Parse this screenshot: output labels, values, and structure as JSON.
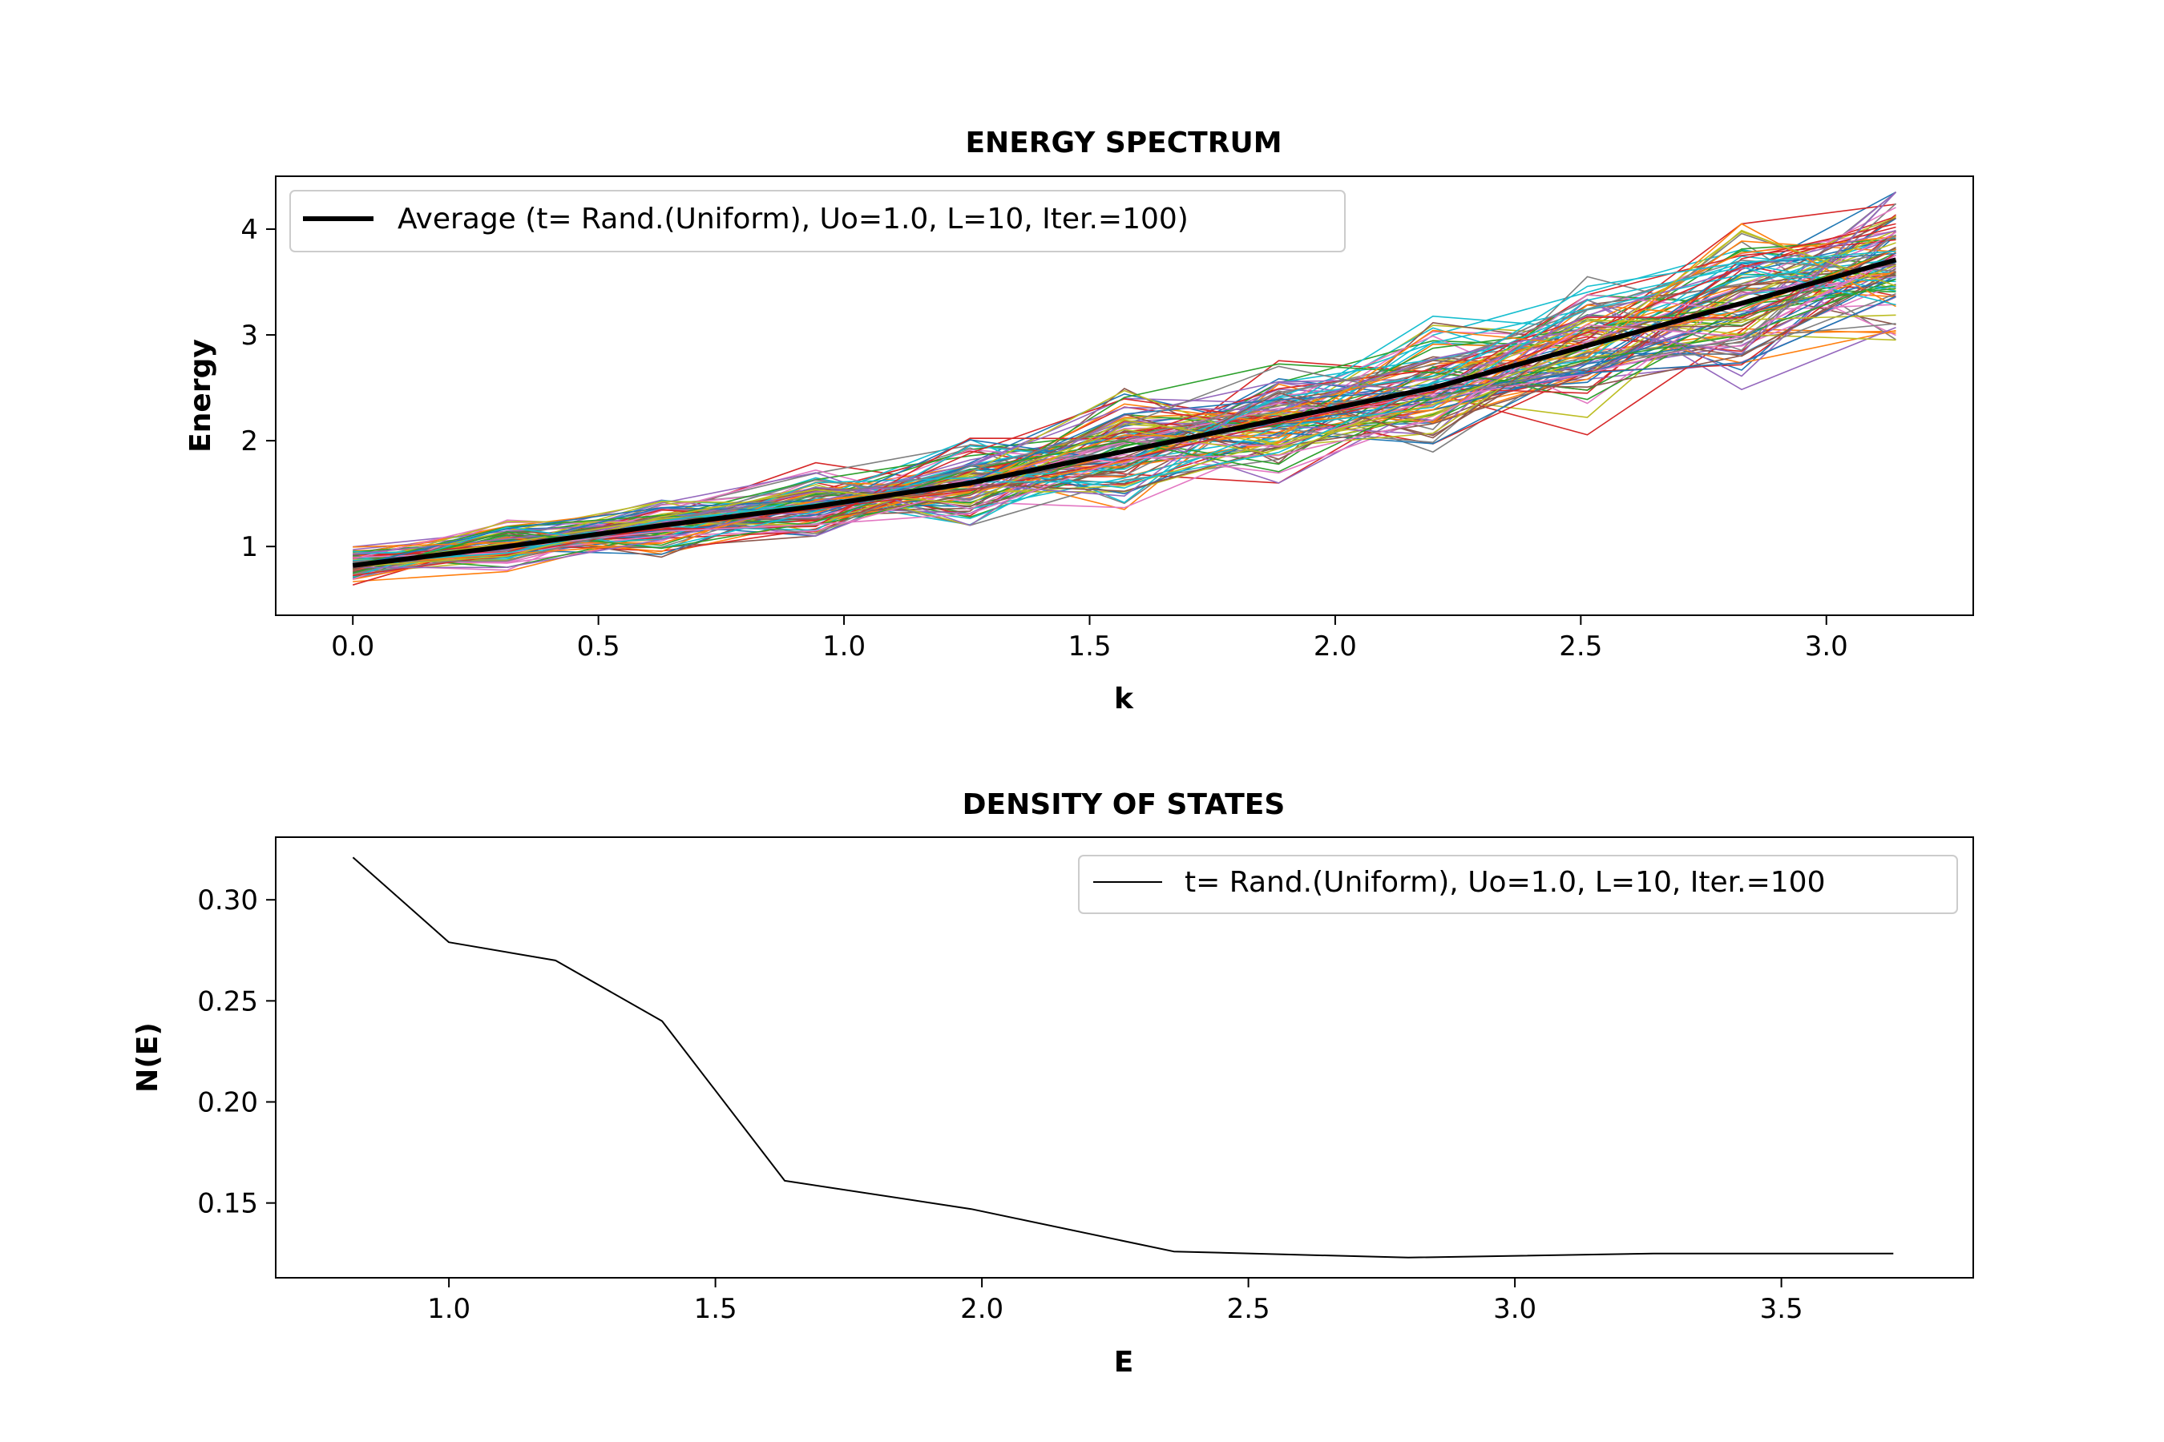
{
  "charts": [
    {
      "id": "energy-spectrum",
      "type": "line",
      "title": "ENERGY SPECTRUM",
      "xlabel": "k",
      "ylabel": "Energy",
      "xlim": [
        -0.157,
        3.299
      ],
      "ylim": [
        0.35,
        4.5
      ],
      "xticks": [
        "0.0",
        "0.5",
        "1.0",
        "1.5",
        "2.0",
        "2.5",
        "3.0"
      ],
      "yticks": [
        "1",
        "2",
        "3",
        "4"
      ],
      "grid": false,
      "legend_position": "upper-left",
      "series": [
        {
          "name": "Average (t= Rand.(Uniform), Uo=1.0, L=10, Iter.=100)",
          "color": "#000000",
          "x": [
            0.0,
            0.3142,
            0.6283,
            0.9425,
            1.2566,
            1.5708,
            1.885,
            2.1991,
            2.5133,
            2.8274,
            3.1416
          ],
          "y": [
            0.82,
            1.0,
            1.2,
            1.38,
            1.6,
            1.9,
            2.2,
            2.5,
            2.9,
            3.3,
            3.71
          ]
        }
      ],
      "realizations": {
        "count": 100,
        "note_visible": false,
        "x": [
          0.0,
          0.3142,
          0.6283,
          0.9425,
          1.2566,
          1.5708,
          1.885,
          2.1991,
          2.5133,
          2.8274,
          3.1416
        ],
        "y_min_envelope": [
          0.6,
          0.7,
          0.9,
          1.1,
          1.2,
          1.35,
          1.6,
          1.75,
          2.0,
          2.4,
          2.45
        ],
        "y_max_envelope": [
          1.05,
          1.25,
          1.6,
          1.9,
          2.2,
          2.7,
          2.9,
          3.25,
          3.55,
          4.05,
          4.35
        ],
        "palette": [
          "#1f77b4",
          "#ff7f0e",
          "#2ca02c",
          "#d62728",
          "#9467bd",
          "#8c564b",
          "#e377c2",
          "#7f7f7f",
          "#bcbd22",
          "#17becf"
        ]
      }
    },
    {
      "id": "density-of-states",
      "type": "line",
      "title": "DENSITY OF STATES",
      "xlabel": "E",
      "ylabel": "N(E)",
      "xlim": [
        0.675,
        3.86
      ],
      "ylim": [
        0.113,
        0.331
      ],
      "xticks": [
        "1.0",
        "1.5",
        "2.0",
        "2.5",
        "3.0",
        "3.5"
      ],
      "yticks": [
        "0.15",
        "0.20",
        "0.25",
        "0.30"
      ],
      "grid": false,
      "legend_position": "upper-right",
      "series": [
        {
          "name": "t= Rand.(Uniform), Uo=1.0, L=10, Iter.=100",
          "color": "#000000",
          "x": [
            0.82,
            1.0,
            1.2,
            1.4,
            1.63,
            1.98,
            2.36,
            2.8,
            3.26,
            3.71
          ],
          "y": [
            0.321,
            0.279,
            0.27,
            0.24,
            0.161,
            0.147,
            0.126,
            0.123,
            0.125,
            0.125
          ]
        }
      ]
    }
  ]
}
